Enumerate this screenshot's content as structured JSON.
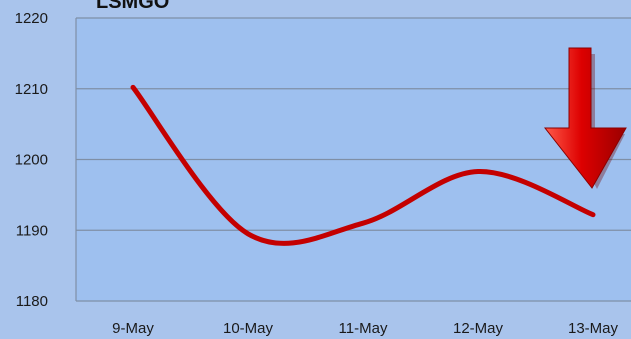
{
  "chart_data": {
    "type": "line",
    "title": "LSMGO",
    "categories": [
      "9-May",
      "10-May",
      "11-May",
      "12-May",
      "13-May"
    ],
    "series": [
      {
        "values": [
          1210.2,
          1189.5,
          1191.0,
          1198.3,
          1192.2
        ]
      }
    ],
    "ylim": [
      1180,
      1220
    ],
    "yticks": [
      "1180",
      "1190",
      "1200",
      "1210",
      "1220"
    ],
    "grid": true,
    "line_color": "#c40000",
    "background_color": "#a9c4ec",
    "plot_color": "#9ec0ef",
    "annotation": {
      "icon": "down-arrow-icon",
      "color": "#cc0000"
    }
  }
}
